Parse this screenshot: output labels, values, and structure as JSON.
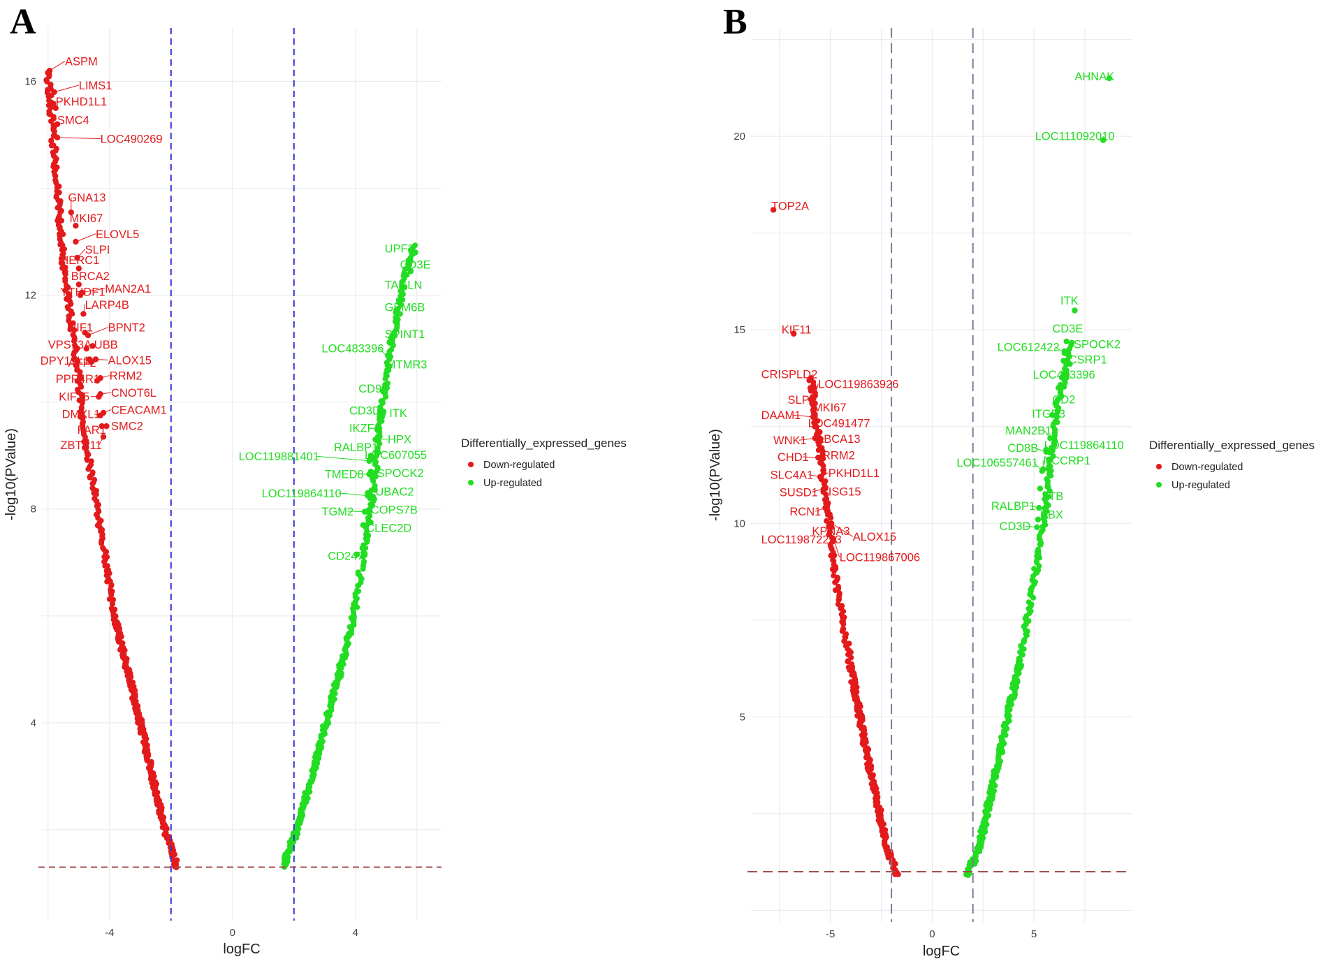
{
  "figure": {
    "colors": {
      "down": "#e31a1c",
      "up": "#22dd22",
      "vline_A": "#3333dd",
      "vline_B": "#7a7a9a",
      "hline": "#a05050"
    }
  },
  "chart_data": [
    {
      "type": "scatter",
      "panel": "A",
      "xlabel": "logFC",
      "ylabel": "-log10(PValue)",
      "xlim": [
        -6.2,
        6.8
      ],
      "ylim": [
        0.3,
        17.0
      ],
      "xticks": [
        -4,
        0,
        4
      ],
      "yticks": [
        4,
        8,
        12,
        16
      ],
      "xticks_text": [
        "-4",
        "0",
        "4"
      ],
      "yticks_text": [
        "4",
        "8",
        "12",
        "16"
      ],
      "thresholds": {
        "logFC": [
          -2,
          2
        ],
        "neg_log10_p": 1.3
      },
      "legend": {
        "title": "Differentially_expressed_genes",
        "entries": [
          {
            "label": "Down-regulated",
            "color": "#e31a1c"
          },
          {
            "label": "Up-regulated",
            "color": "#22dd22"
          }
        ]
      },
      "series": [
        {
          "name": "Down-regulated",
          "color": "#e31a1c",
          "curve": [
            [
              -1.8,
              1.3
            ],
            [
              -2.2,
              2.0
            ],
            [
              -3.0,
              4.0
            ],
            [
              -3.85,
              6.0
            ],
            [
              -4.4,
              8.0
            ],
            [
              -4.85,
              9.5
            ],
            [
              -5.0,
              10.5
            ],
            [
              -5.3,
              11.7
            ],
            [
              -5.5,
              12.5
            ],
            [
              -5.7,
              14.0
            ],
            [
              -6.0,
              16.2
            ]
          ]
        },
        {
          "name": "Up-regulated",
          "color": "#22dd22",
          "curve": [
            [
              1.65,
              1.3
            ],
            [
              2.1,
              2.0
            ],
            [
              3.05,
              4.0
            ],
            [
              3.95,
              6.0
            ],
            [
              4.2,
              7.0
            ],
            [
              4.5,
              8.0
            ],
            [
              4.7,
              9.0
            ],
            [
              4.9,
              10.0
            ],
            [
              5.2,
              11.2
            ],
            [
              5.6,
              12.3
            ],
            [
              5.9,
              13.0
            ]
          ]
        }
      ],
      "labels": [
        {
          "t": "ASPM",
          "x": -5.95,
          "y": 16.2,
          "lx": -5.45,
          "ly": 16.3,
          "g": "down"
        },
        {
          "t": "LIMS1",
          "x": -5.8,
          "y": 15.8,
          "lx": -5.0,
          "ly": 15.85,
          "g": "down"
        },
        {
          "t": "PKHD1L1",
          "x": -5.75,
          "y": 15.5,
          "lx": -5.75,
          "ly": 15.55,
          "g": "down"
        },
        {
          "t": "SMC4",
          "x": -5.7,
          "y": 15.2,
          "lx": -5.7,
          "ly": 15.2,
          "g": "down"
        },
        {
          "t": "LOC490269",
          "x": -5.7,
          "y": 14.95,
          "lx": -4.3,
          "ly": 14.85,
          "g": "down"
        },
        {
          "t": "GNA13",
          "x": -5.25,
          "y": 13.55,
          "lx": -5.35,
          "ly": 13.75,
          "g": "down"
        },
        {
          "t": "MKI67",
          "x": -5.1,
          "y": 13.3,
          "lx": -5.3,
          "ly": 13.37,
          "g": "down"
        },
        {
          "t": "ELOVL5",
          "x": -5.1,
          "y": 13.0,
          "lx": -4.45,
          "ly": 13.07,
          "g": "down"
        },
        {
          "t": "SLPI",
          "x": -5.05,
          "y": 12.7,
          "lx": -4.8,
          "ly": 12.78,
          "g": "down"
        },
        {
          "t": "HERC1",
          "x": -5.0,
          "y": 12.5,
          "lx": -5.6,
          "ly": 12.58,
          "g": "down"
        },
        {
          "t": "BRCA2",
          "x": -5.0,
          "y": 12.2,
          "lx": -5.25,
          "ly": 12.28,
          "g": "down"
        },
        {
          "t": "YTHDF1",
          "x": -4.95,
          "y": 12.0,
          "lx": -5.6,
          "ly": 11.99,
          "g": "down"
        },
        {
          "t": "MAN2A1",
          "x": -4.9,
          "y": 12.05,
          "lx": -4.15,
          "ly": 12.05,
          "g": "down"
        },
        {
          "t": "LARP4B",
          "x": -4.85,
          "y": 11.65,
          "lx": -4.8,
          "ly": 11.75,
          "g": "down"
        },
        {
          "t": "RIF1",
          "x": -4.8,
          "y": 11.3,
          "lx": -5.35,
          "ly": 11.32,
          "g": "down"
        },
        {
          "t": "BPNT2",
          "x": -4.7,
          "y": 11.25,
          "lx": -4.05,
          "ly": 11.32,
          "g": "down"
        },
        {
          "t": "VPS13A",
          "x": -4.75,
          "y": 11.0,
          "lx": -6.0,
          "ly": 11.0,
          "g": "down"
        },
        {
          "t": "UBB",
          "x": -4.55,
          "y": 11.05,
          "lx": -4.5,
          "ly": 11.0,
          "g": "down"
        },
        {
          "t": "DPY19L1",
          "x": -4.65,
          "y": 10.8,
          "lx": -6.25,
          "ly": 10.7,
          "g": "down"
        },
        {
          "t": "AFF2",
          "x": -4.6,
          "y": 10.75,
          "lx": -5.35,
          "ly": 10.66,
          "g": "down"
        },
        {
          "t": "ALOX15",
          "x": -4.45,
          "y": 10.8,
          "lx": -4.05,
          "ly": 10.71,
          "g": "down"
        },
        {
          "t": "PPP4R1",
          "x": -4.4,
          "y": 10.4,
          "lx": -5.75,
          "ly": 10.36,
          "g": "down"
        },
        {
          "t": "RRM2",
          "x": -4.3,
          "y": 10.45,
          "lx": -4.0,
          "ly": 10.42,
          "g": "down"
        },
        {
          "t": "KIF15",
          "x": -4.35,
          "y": 10.1,
          "lx": -5.65,
          "ly": 10.03,
          "g": "down"
        },
        {
          "t": "CNOT6L",
          "x": -4.3,
          "y": 10.15,
          "lx": -3.95,
          "ly": 10.1,
          "g": "down"
        },
        {
          "t": "DMXL1",
          "x": -4.3,
          "y": 9.75,
          "lx": -5.55,
          "ly": 9.7,
          "g": "down"
        },
        {
          "t": "CEACAM1",
          "x": -4.2,
          "y": 9.8,
          "lx": -3.95,
          "ly": 9.78,
          "g": "down"
        },
        {
          "t": "FAR1",
          "x": -4.25,
          "y": 9.55,
          "lx": -5.05,
          "ly": 9.41,
          "g": "down"
        },
        {
          "t": "SMC2",
          "x": -4.1,
          "y": 9.55,
          "lx": -3.95,
          "ly": 9.48,
          "g": "down"
        },
        {
          "t": "ZBTB11",
          "x": -4.2,
          "y": 9.35,
          "lx": -5.6,
          "ly": 9.12,
          "g": "down"
        },
        {
          "t": "UPF2",
          "x": 5.95,
          "y": 12.8,
          "lx": 4.95,
          "ly": 12.8,
          "g": "up"
        },
        {
          "t": "CD3E",
          "x": 5.8,
          "y": 12.45,
          "lx": 5.45,
          "ly": 12.5,
          "g": "up"
        },
        {
          "t": "TAGLN",
          "x": 5.6,
          "y": 12.15,
          "lx": 4.95,
          "ly": 12.12,
          "g": "up"
        },
        {
          "t": "GPM6B",
          "x": 5.45,
          "y": 11.65,
          "lx": 4.95,
          "ly": 11.7,
          "g": "up"
        },
        {
          "t": "SPINT1",
          "x": 5.2,
          "y": 11.1,
          "lx": 4.95,
          "ly": 11.2,
          "g": "up"
        },
        {
          "t": "LOC483396",
          "x": 5.1,
          "y": 10.8,
          "lx": 2.9,
          "ly": 10.93,
          "g": "up"
        },
        {
          "t": "MTMR3",
          "x": 5.0,
          "y": 10.5,
          "lx": 5.0,
          "ly": 10.63,
          "g": "up"
        },
        {
          "t": "CD93",
          "x": 4.9,
          "y": 10.2,
          "lx": 4.1,
          "ly": 10.18,
          "g": "up"
        },
        {
          "t": "CD3D",
          "x": 4.8,
          "y": 9.85,
          "lx": 3.8,
          "ly": 9.77,
          "g": "up"
        },
        {
          "t": "ITK",
          "x": 4.8,
          "y": 9.8,
          "lx": 5.1,
          "ly": 9.72,
          "g": "up"
        },
        {
          "t": "IKZF3",
          "x": 4.7,
          "y": 9.5,
          "lx": 3.8,
          "ly": 9.44,
          "g": "up"
        },
        {
          "t": "HPX",
          "x": 4.65,
          "y": 9.3,
          "lx": 5.05,
          "ly": 9.23,
          "g": "up"
        },
        {
          "t": "RALBP1",
          "x": 4.5,
          "y": 9.0,
          "lx": 3.3,
          "ly": 9.08,
          "g": "up"
        },
        {
          "t": "LOC119881401",
          "x": 4.45,
          "y": 8.9,
          "lx": 0.2,
          "ly": 8.91,
          "g": "up"
        },
        {
          "t": "LOC607055",
          "x": 4.5,
          "y": 8.95,
          "lx": 4.3,
          "ly": 8.94,
          "g": "up"
        },
        {
          "t": "TMED8",
          "x": 4.45,
          "y": 8.65,
          "lx": 3.0,
          "ly": 8.58,
          "g": "up"
        },
        {
          "t": "SPOCK2",
          "x": 4.5,
          "y": 8.7,
          "lx": 4.7,
          "ly": 8.6,
          "g": "up"
        },
        {
          "t": "LOC119864110",
          "x": 4.4,
          "y": 8.25,
          "lx": 0.95,
          "ly": 8.22,
          "g": "up"
        },
        {
          "t": "UBAC2",
          "x": 4.4,
          "y": 8.3,
          "lx": 4.65,
          "ly": 8.25,
          "g": "up"
        },
        {
          "t": "TGM2",
          "x": 4.3,
          "y": 7.95,
          "lx": 2.9,
          "ly": 7.88,
          "g": "up"
        },
        {
          "t": "COPS7B",
          "x": 4.35,
          "y": 7.95,
          "lx": 4.5,
          "ly": 7.91,
          "g": "up"
        },
        {
          "t": "CLEC2D",
          "x": 4.25,
          "y": 7.7,
          "lx": 4.35,
          "ly": 7.57,
          "g": "up"
        },
        {
          "t": "CD247",
          "x": 4.05,
          "y": 7.15,
          "lx": 3.1,
          "ly": 7.05,
          "g": "up"
        }
      ]
    },
    {
      "type": "scatter",
      "panel": "B",
      "xlabel": "logFC",
      "ylabel": "-log10(PValue)",
      "xlim": [
        -8.9,
        9.8
      ],
      "ylim": [
        -0.3,
        22.8
      ],
      "xticks": [
        -5,
        0,
        5
      ],
      "yticks": [
        5,
        10,
        15,
        20
      ],
      "xticks_text": [
        "-5",
        "0",
        "5"
      ],
      "yticks_text": [
        "5",
        "10",
        "15",
        "20"
      ],
      "thresholds": {
        "logFC": [
          -2,
          2
        ],
        "neg_log10_p": 1.0
      },
      "legend": {
        "title": "Differentially_expressed_genes",
        "entries": [
          {
            "label": "Down-regulated",
            "color": "#e31a1c"
          },
          {
            "label": "Up-regulated",
            "color": "#22dd22"
          }
        ]
      },
      "series": [
        {
          "name": "Down-regulated",
          "color": "#e31a1c",
          "curve": [
            [
              -1.7,
              0.9
            ],
            [
              -2.2,
              1.6
            ],
            [
              -3.2,
              4.0
            ],
            [
              -4.0,
              6.3
            ],
            [
              -4.6,
              8.1
            ],
            [
              -4.9,
              9.2
            ],
            [
              -5.0,
              9.8
            ],
            [
              -5.3,
              11.0
            ],
            [
              -5.6,
              12.3
            ],
            [
              -5.95,
              13.8
            ]
          ]
        },
        {
          "name": "Up-regulated",
          "color": "#22dd22",
          "curve": [
            [
              1.7,
              0.9
            ],
            [
              2.3,
              1.6
            ],
            [
              3.3,
              4.0
            ],
            [
              4.3,
              6.4
            ],
            [
              5.1,
              8.8
            ],
            [
              5.4,
              9.8
            ],
            [
              5.6,
              10.5
            ],
            [
              5.8,
              11.5
            ],
            [
              6.1,
              12.9
            ],
            [
              6.5,
              13.8
            ],
            [
              6.9,
              14.7
            ]
          ]
        }
      ],
      "labels": [
        {
          "t": "AHNAK",
          "x": 8.7,
          "y": 21.5,
          "lx": 7.0,
          "ly": 21.45,
          "g": "up"
        },
        {
          "t": "LOC111092010",
          "x": 8.4,
          "y": 19.9,
          "lx": 5.05,
          "ly": 19.9,
          "g": "up"
        },
        {
          "t": "TOP2A",
          "x": -7.8,
          "y": 18.1,
          "lx": -7.9,
          "ly": 18.1,
          "g": "down"
        },
        {
          "t": "ITK",
          "x": 7.0,
          "y": 15.5,
          "lx": 6.3,
          "ly": 15.65,
          "g": "up"
        },
        {
          "t": "KIF11",
          "x": -6.8,
          "y": 14.9,
          "lx": -7.4,
          "ly": 14.9,
          "g": "down"
        },
        {
          "t": "CD3E",
          "x": 6.6,
          "y": 14.7,
          "lx": 5.9,
          "ly": 14.93,
          "g": "up"
        },
        {
          "t": "LOC612422",
          "x": 6.5,
          "y": 14.4,
          "lx": 3.2,
          "ly": 14.45,
          "g": "up"
        },
        {
          "t": "SPOCK2",
          "x": 6.5,
          "y": 14.45,
          "lx": 6.95,
          "ly": 14.53,
          "g": "up"
        },
        {
          "t": "CSRP1",
          "x": 6.45,
          "y": 14.2,
          "lx": 6.7,
          "ly": 14.13,
          "g": "up"
        },
        {
          "t": "CRISPLD2",
          "x": -5.8,
          "y": 13.5,
          "lx": -8.4,
          "ly": 13.75,
          "g": "down"
        },
        {
          "t": "LOC119863926",
          "x": -5.75,
          "y": 13.3,
          "lx": -5.6,
          "ly": 13.5,
          "g": "down"
        },
        {
          "t": "LOC483396",
          "x": 6.2,
          "y": 13.5,
          "lx": 4.95,
          "ly": 13.74,
          "g": "up"
        },
        {
          "t": "SLPI",
          "x": -5.95,
          "y": 13.2,
          "lx": -7.1,
          "ly": 13.09,
          "g": "down"
        },
        {
          "t": "MKI67",
          "x": -5.9,
          "y": 13.1,
          "lx": -5.85,
          "ly": 12.89,
          "g": "down"
        },
        {
          "t": "CD2",
          "x": 6.05,
          "y": 13.1,
          "lx": 5.9,
          "ly": 13.1,
          "g": "up"
        },
        {
          "t": "DAAM1",
          "x": -5.85,
          "y": 12.75,
          "lx": -8.4,
          "ly": 12.69,
          "g": "down"
        },
        {
          "t": "LOC491477",
          "x": -5.8,
          "y": 12.6,
          "lx": -6.1,
          "ly": 12.49,
          "g": "down"
        },
        {
          "t": "ITGB3",
          "x": 5.9,
          "y": 12.8,
          "lx": 4.9,
          "ly": 12.73,
          "g": "up"
        },
        {
          "t": "WNK1",
          "x": -5.75,
          "y": 12.2,
          "lx": -7.8,
          "ly": 12.04,
          "g": "down"
        },
        {
          "t": "ABCA13",
          "x": -5.7,
          "y": 12.2,
          "lx": -5.7,
          "ly": 12.08,
          "g": "down"
        },
        {
          "t": "MAN2B1",
          "x": 5.8,
          "y": 12.2,
          "lx": 3.6,
          "ly": 12.3,
          "g": "up"
        },
        {
          "t": "CD8B",
          "x": 5.6,
          "y": 11.85,
          "lx": 3.7,
          "ly": 11.85,
          "g": "up"
        },
        {
          "t": "LOC119864110",
          "x": 5.6,
          "y": 11.9,
          "lx": 5.5,
          "ly": 11.92,
          "g": "up"
        },
        {
          "t": "CHD1",
          "x": -5.6,
          "y": 11.7,
          "lx": -7.6,
          "ly": 11.61,
          "g": "down"
        },
        {
          "t": "RRM2",
          "x": -5.55,
          "y": 11.7,
          "lx": -5.4,
          "ly": 11.66,
          "g": "down"
        },
        {
          "t": "SLC4A1",
          "x": -5.5,
          "y": 11.2,
          "lx": -7.95,
          "ly": 11.15,
          "g": "down"
        },
        {
          "t": "PKHD1L1",
          "x": -5.45,
          "y": 11.2,
          "lx": -5.1,
          "ly": 11.2,
          "g": "down"
        },
        {
          "t": "LOC106557461",
          "x": 5.4,
          "y": 11.35,
          "lx": 1.2,
          "ly": 11.47,
          "g": "up"
        },
        {
          "t": "NCCRP1",
          "x": 5.45,
          "y": 11.4,
          "lx": 5.45,
          "ly": 11.52,
          "g": "up"
        },
        {
          "t": "SUSD1",
          "x": -5.3,
          "y": 10.9,
          "lx": -7.5,
          "ly": 10.7,
          "g": "down"
        },
        {
          "t": "ISG15",
          "x": -5.25,
          "y": 10.9,
          "lx": -5.1,
          "ly": 10.72,
          "g": "down"
        },
        {
          "t": "LTB",
          "x": 5.3,
          "y": 10.9,
          "lx": 5.45,
          "ly": 10.6,
          "g": "up"
        },
        {
          "t": "RALBP1",
          "x": 5.25,
          "y": 10.4,
          "lx": 2.9,
          "ly": 10.35,
          "g": "up"
        },
        {
          "t": "RCN1",
          "x": -5.25,
          "y": 10.4,
          "lx": -7.0,
          "ly": 10.2,
          "g": "down"
        },
        {
          "t": "BBX",
          "x": 5.2,
          "y": 10.1,
          "lx": 5.3,
          "ly": 10.12,
          "g": "up"
        },
        {
          "t": "CD3D",
          "x": 5.15,
          "y": 9.9,
          "lx": 3.3,
          "ly": 9.82,
          "g": "up"
        },
        {
          "t": "KPNA3",
          "x": -5.0,
          "y": 9.9,
          "lx": -5.9,
          "ly": 9.7,
          "g": "down"
        },
        {
          "t": "ALOX15",
          "x": -4.95,
          "y": 10.0,
          "lx": -3.9,
          "ly": 9.55,
          "g": "down"
        },
        {
          "t": "LOC119872253",
          "x": -4.95,
          "y": 9.9,
          "lx": -8.4,
          "ly": 9.48,
          "g": "down"
        },
        {
          "t": "LOC119867006",
          "x": -4.85,
          "y": 9.6,
          "lx": -4.55,
          "ly": 9.02,
          "g": "down"
        }
      ]
    }
  ]
}
